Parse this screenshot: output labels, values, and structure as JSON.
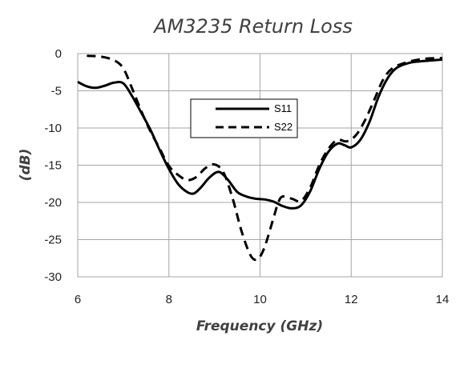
{
  "chart_data": {
    "type": "line",
    "title": "AM3235 Return Loss",
    "xlabel": "Frequency (GHz)",
    "ylabel": "(dB)",
    "xlim": [
      6,
      14
    ],
    "ylim": [
      -30,
      0
    ],
    "x_ticks": [
      "6",
      "8",
      "10",
      "12",
      "14"
    ],
    "y_ticks": [
      "0",
      "-5",
      "-10",
      "-15",
      "-20",
      "-25",
      "-30"
    ],
    "grid": true,
    "legend_position": "top-center",
    "series": [
      {
        "name": "S11",
        "style": "solid",
        "color": "#000000",
        "points": [
          [
            6.0,
            -3.8
          ],
          [
            6.2,
            -4.4
          ],
          [
            6.4,
            -4.6
          ],
          [
            6.6,
            -4.3
          ],
          [
            6.8,
            -3.9
          ],
          [
            7.0,
            -4.0
          ],
          [
            7.2,
            -5.8
          ],
          [
            7.4,
            -8.0
          ],
          [
            7.6,
            -10.3
          ],
          [
            7.8,
            -13.0
          ],
          [
            8.0,
            -15.5
          ],
          [
            8.2,
            -17.5
          ],
          [
            8.4,
            -18.6
          ],
          [
            8.55,
            -18.8
          ],
          [
            8.7,
            -18.0
          ],
          [
            8.9,
            -16.6
          ],
          [
            9.1,
            -15.9
          ],
          [
            9.3,
            -17.0
          ],
          [
            9.5,
            -18.6
          ],
          [
            9.7,
            -19.2
          ],
          [
            9.9,
            -19.5
          ],
          [
            10.1,
            -19.6
          ],
          [
            10.3,
            -19.9
          ],
          [
            10.5,
            -20.5
          ],
          [
            10.7,
            -20.8
          ],
          [
            10.9,
            -20.4
          ],
          [
            11.1,
            -18.5
          ],
          [
            11.3,
            -15.5
          ],
          [
            11.5,
            -13.2
          ],
          [
            11.7,
            -12.1
          ],
          [
            11.85,
            -12.3
          ],
          [
            12.0,
            -12.6
          ],
          [
            12.2,
            -11.6
          ],
          [
            12.4,
            -9.2
          ],
          [
            12.6,
            -5.8
          ],
          [
            12.8,
            -3.3
          ],
          [
            13.0,
            -1.9
          ],
          [
            13.3,
            -1.2
          ],
          [
            13.6,
            -1.0
          ],
          [
            14.0,
            -0.8
          ]
        ]
      },
      {
        "name": "S22",
        "style": "dashed",
        "color": "#000000",
        "points": [
          [
            6.2,
            -0.3
          ],
          [
            6.5,
            -0.4
          ],
          [
            6.8,
            -0.9
          ],
          [
            7.0,
            -2.0
          ],
          [
            7.2,
            -4.8
          ],
          [
            7.4,
            -7.8
          ],
          [
            7.6,
            -10.5
          ],
          [
            7.8,
            -12.8
          ],
          [
            8.0,
            -15.1
          ],
          [
            8.2,
            -16.3
          ],
          [
            8.4,
            -17.0
          ],
          [
            8.6,
            -16.6
          ],
          [
            8.8,
            -15.4
          ],
          [
            9.0,
            -14.9
          ],
          [
            9.2,
            -16.0
          ],
          [
            9.4,
            -19.5
          ],
          [
            9.6,
            -24.0
          ],
          [
            9.8,
            -27.2
          ],
          [
            9.95,
            -27.6
          ],
          [
            10.1,
            -26.0
          ],
          [
            10.3,
            -22.0
          ],
          [
            10.4,
            -20.0
          ],
          [
            10.5,
            -19.2
          ],
          [
            10.7,
            -19.5
          ],
          [
            10.9,
            -19.8
          ],
          [
            11.1,
            -18.0
          ],
          [
            11.3,
            -15.0
          ],
          [
            11.5,
            -12.8
          ],
          [
            11.7,
            -11.6
          ],
          [
            11.9,
            -11.8
          ],
          [
            12.1,
            -11.0
          ],
          [
            12.3,
            -9.0
          ],
          [
            12.5,
            -6.3
          ],
          [
            12.7,
            -3.5
          ],
          [
            12.9,
            -2.0
          ],
          [
            13.2,
            -1.2
          ],
          [
            13.6,
            -0.7
          ],
          [
            14.0,
            -0.6
          ]
        ]
      }
    ]
  }
}
